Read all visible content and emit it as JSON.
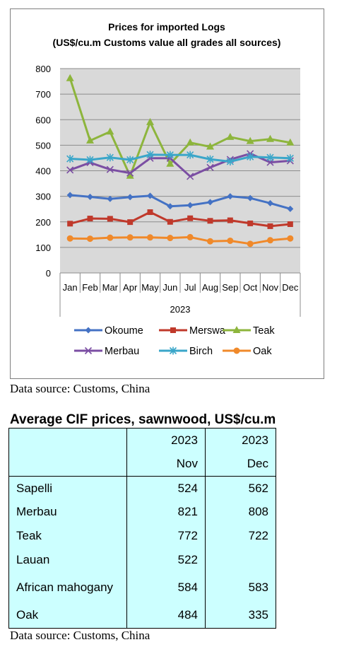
{
  "chart_data": {
    "type": "line",
    "title": "Prices for imported Logs",
    "subtitle": "(US$/cu.m Customs value all grades all sources)",
    "categories": [
      "Jan",
      "Feb",
      "Mar",
      "Apr",
      "May",
      "Jun",
      "Jul",
      "Aug",
      "Sep",
      "Oct",
      "Nov",
      "Dec"
    ],
    "xlabel": "2023",
    "ylabel": "",
    "ylim": [
      0,
      800
    ],
    "yticks": [
      "0",
      "100",
      "200",
      "300",
      "400",
      "500",
      "600",
      "700",
      "800"
    ],
    "grid": true,
    "legend_position": "bottom",
    "series": [
      {
        "name": "Okoume",
        "color": "#4472c4",
        "marker": "diamond",
        "values": [
          305,
          298,
          290,
          297,
          302,
          261,
          265,
          277,
          300,
          293,
          273,
          251
        ]
      },
      {
        "name": "Merswa",
        "color": "#c0392b",
        "marker": "square",
        "values": [
          193,
          213,
          212,
          199,
          238,
          200,
          214,
          204,
          206,
          194,
          183,
          191
        ]
      },
      {
        "name": "Teak",
        "color": "#8db53c",
        "marker": "triangle",
        "values": [
          762,
          518,
          553,
          380,
          590,
          427,
          510,
          494,
          532,
          516,
          524,
          510
        ]
      },
      {
        "name": "Merbau",
        "color": "#7b4ea3",
        "marker": "x",
        "values": [
          403,
          432,
          405,
          391,
          449,
          449,
          378,
          413,
          444,
          467,
          433,
          439
        ]
      },
      {
        "name": "Birch",
        "color": "#3aa6c9",
        "marker": "star",
        "values": [
          447,
          443,
          452,
          443,
          463,
          462,
          462,
          445,
          436,
          455,
          452,
          449
        ]
      },
      {
        "name": "Oak",
        "color": "#f0892a",
        "marker": "circle",
        "values": [
          135,
          134,
          138,
          139,
          139,
          137,
          140,
          124,
          126,
          114,
          128,
          135
        ]
      }
    ]
  },
  "chart_source": "Data source: Customs, China",
  "table": {
    "title": "Average CIF prices, sawnwood, US$/cu.m",
    "header": {
      "year1": "2023",
      "year2": "2023",
      "month1": "Nov",
      "month2": "Dec"
    },
    "rows": [
      {
        "name": "Sapelli",
        "nov": "524",
        "dec": "562"
      },
      {
        "name": "Merbau",
        "nov": "821",
        "dec": "808"
      },
      {
        "name": "Teak",
        "nov": "772",
        "dec": "722"
      },
      {
        "name": "Lauan",
        "nov": "522",
        "dec": ""
      },
      {
        "name": "African mahogany",
        "nov": "584",
        "dec": "583"
      },
      {
        "name": "Oak",
        "nov": "484",
        "dec": "335"
      }
    ],
    "source": "Data source: Customs, China"
  }
}
